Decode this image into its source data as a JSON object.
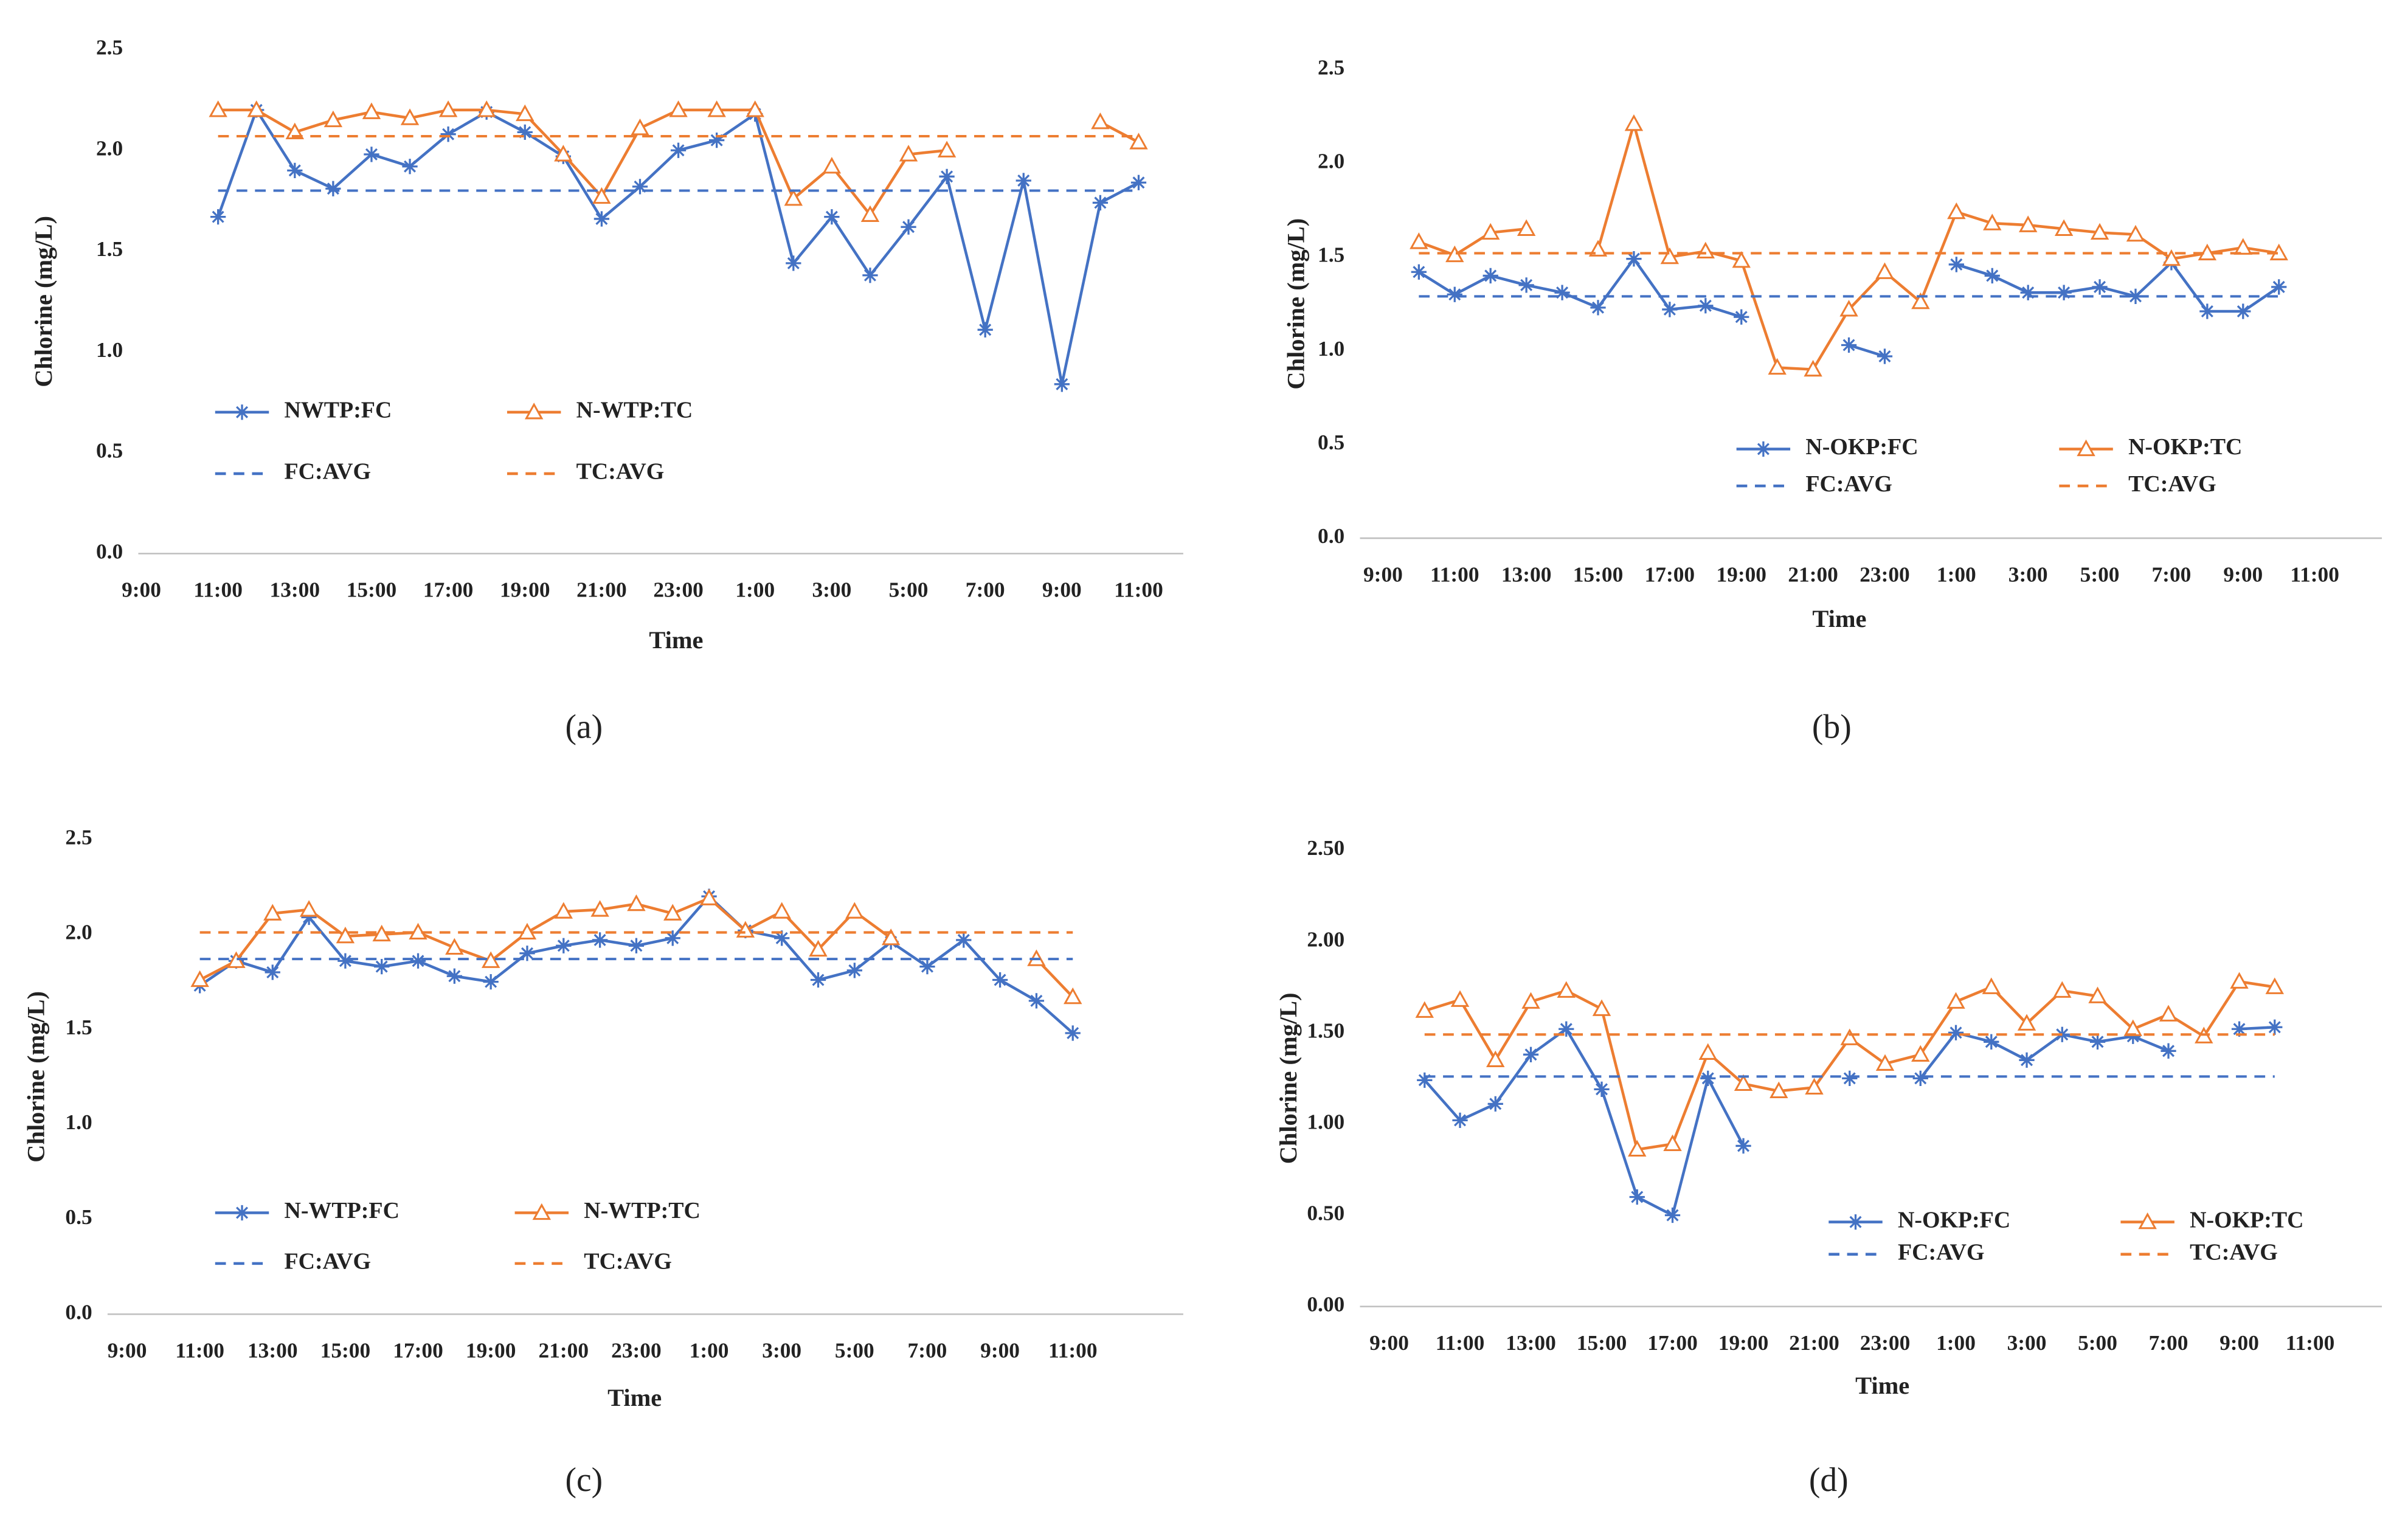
{
  "chart_data": [
    {
      "type": "line",
      "panel_label": "(a)",
      "x_label": "Time",
      "y_label": "Chlorine (mg/L)",
      "categories": [
        "9:00",
        null,
        "11:00",
        null,
        "13:00",
        null,
        "15:00",
        null,
        "17:00",
        null,
        "19:00",
        null,
        "21:00",
        null,
        "23:00",
        null,
        "1:00",
        null,
        "3:00",
        null,
        "5:00",
        null,
        "7:00",
        null,
        "9:00",
        null,
        "11:00"
      ],
      "ylim": [
        0,
        2.5
      ],
      "yticks": [
        {
          "value": 0,
          "label": "0.0"
        },
        0.5,
        {
          "value": 1,
          "label": "1.0"
        },
        1.5,
        {
          "value": 2,
          "label": "2.0"
        },
        2.5
      ],
      "series": [
        {
          "name": "NWTP:FC",
          "color": "#4472c4",
          "marker": "star",
          "dash": false,
          "values": [
            null,
            null,
            1.67,
            2.2,
            1.9,
            1.81,
            1.98,
            1.92,
            2.08,
            2.19,
            2.09,
            1.97,
            1.66,
            1.82,
            2.0,
            2.05,
            2.18,
            1.44,
            1.67,
            1.38,
            1.62,
            1.87,
            1.11,
            1.85,
            0.84,
            1.74,
            1.84
          ]
        },
        {
          "name": "N-WTP:TC",
          "color": "#ed7d31",
          "marker": "triangle",
          "dash": false,
          "values": [
            null,
            null,
            2.2,
            2.2,
            2.09,
            2.15,
            2.19,
            2.16,
            2.2,
            2.2,
            2.18,
            1.98,
            1.77,
            2.11,
            2.2,
            2.2,
            2.2,
            1.76,
            1.92,
            1.68,
            1.98,
            2.0,
            null,
            null,
            null,
            2.14,
            2.04
          ]
        },
        {
          "name": "FC:AVG",
          "color": "#4472c4",
          "marker": null,
          "dash": true,
          "values": [
            null,
            null,
            1.8,
            1.8,
            1.8,
            1.8,
            1.8,
            1.8,
            1.8,
            1.8,
            1.8,
            1.8,
            1.8,
            1.8,
            1.8,
            1.8,
            1.8,
            1.8,
            1.8,
            1.8,
            1.8,
            1.8,
            1.8,
            1.8,
            1.8,
            1.8,
            1.8
          ]
        },
        {
          "name": "TC:AVG",
          "color": "#ed7d31",
          "marker": null,
          "dash": true,
          "values": [
            null,
            null,
            2.07,
            2.07,
            2.07,
            2.07,
            2.07,
            2.07,
            2.07,
            2.07,
            2.07,
            2.07,
            2.07,
            2.07,
            2.07,
            2.07,
            2.07,
            2.07,
            2.07,
            2.07,
            2.07,
            2.07,
            2.07,
            2.07,
            2.07,
            2.07,
            2.07
          ]
        }
      ]
    },
    {
      "type": "line",
      "panel_label": "(b)",
      "x_label": "Time",
      "y_label": "Chlorine (mg/L)",
      "categories": [
        "9:00",
        null,
        "11:00",
        null,
        "13:00",
        null,
        "15:00",
        null,
        "17:00",
        null,
        "19:00",
        null,
        "21:00",
        null,
        "23:00",
        null,
        "1:00",
        null,
        "3:00",
        null,
        "5:00",
        null,
        "7:00",
        null,
        "9:00",
        null,
        "11:00"
      ],
      "ylim": [
        0,
        2.5
      ],
      "yticks": [
        {
          "value": 0,
          "label": "0.0"
        },
        0.5,
        {
          "value": 1,
          "label": "1.0"
        },
        1.5,
        {
          "value": 2,
          "label": "2.0"
        },
        2.5
      ],
      "series": [
        {
          "name": "N-OKP:FC",
          "color": "#4472c4",
          "marker": "star",
          "dash": false,
          "values": [
            null,
            1.42,
            1.3,
            1.4,
            1.35,
            1.31,
            1.23,
            1.49,
            1.22,
            1.24,
            1.18,
            null,
            null,
            1.03,
            0.97,
            null,
            1.46,
            1.4,
            1.31,
            1.31,
            1.34,
            1.29,
            1.47,
            1.21,
            1.21,
            1.34,
            null
          ]
        },
        {
          "name": "N-OKP:TC",
          "color": "#ed7d31",
          "marker": "triangle",
          "dash": false,
          "values": [
            null,
            1.58,
            1.51,
            1.63,
            1.65,
            null,
            1.54,
            2.21,
            1.5,
            1.53,
            1.48,
            0.91,
            0.9,
            1.22,
            1.42,
            1.26,
            1.74,
            1.68,
            1.67,
            1.65,
            1.63,
            1.62,
            1.49,
            1.52,
            1.55,
            1.52,
            null
          ]
        },
        {
          "name": "FC:AVG",
          "color": "#4472c4",
          "marker": null,
          "dash": true,
          "values": [
            null,
            1.29,
            1.29,
            1.29,
            1.29,
            1.29,
            1.29,
            1.29,
            1.29,
            1.29,
            1.29,
            1.29,
            1.29,
            1.29,
            1.29,
            1.29,
            1.29,
            1.29,
            1.29,
            1.29,
            1.29,
            1.29,
            1.29,
            1.29,
            1.29,
            1.29,
            null
          ]
        },
        {
          "name": "TC:AVG",
          "color": "#ed7d31",
          "marker": null,
          "dash": true,
          "values": [
            null,
            1.52,
            1.52,
            1.52,
            1.52,
            1.52,
            1.52,
            1.52,
            1.52,
            1.52,
            1.52,
            1.52,
            1.52,
            1.52,
            1.52,
            1.52,
            1.52,
            1.52,
            1.52,
            1.52,
            1.52,
            1.52,
            1.52,
            1.52,
            1.52,
            1.52,
            null
          ]
        }
      ]
    },
    {
      "type": "line",
      "panel_label": "(c)",
      "x_label": "Time",
      "y_label": "Chlorine (mg/L)",
      "categories": [
        "9:00",
        null,
        "11:00",
        null,
        "13:00",
        null,
        "15:00",
        null,
        "17:00",
        null,
        "19:00",
        null,
        "21:00",
        null,
        "23:00",
        null,
        "1:00",
        null,
        "3:00",
        null,
        "5:00",
        null,
        "7:00",
        null,
        "9:00",
        null,
        "11:00"
      ],
      "ylim": [
        0,
        2.5
      ],
      "yticks": [
        {
          "value": 0,
          "label": "0.0"
        },
        0.5,
        {
          "value": 1,
          "label": "1.0"
        },
        1.5,
        {
          "value": 2,
          "label": "2.0"
        },
        2.5
      ],
      "series": [
        {
          "name": "N-WTP:FC",
          "color": "#4472c4",
          "marker": "star",
          "dash": false,
          "values": [
            null,
            null,
            1.73,
            1.86,
            1.8,
            2.09,
            1.86,
            1.83,
            1.86,
            1.78,
            1.75,
            1.9,
            1.94,
            1.97,
            1.94,
            1.98,
            2.2,
            2.02,
            1.98,
            1.76,
            1.81,
            1.96,
            1.83,
            1.97,
            1.76,
            1.65,
            1.48
          ]
        },
        {
          "name": "N-WTP:TC",
          "color": "#ed7d31",
          "marker": "triangle",
          "dash": false,
          "values": [
            null,
            null,
            1.76,
            1.86,
            2.11,
            2.13,
            1.99,
            2.0,
            2.01,
            1.93,
            1.86,
            2.01,
            2.12,
            2.13,
            2.16,
            2.11,
            2.19,
            2.02,
            2.12,
            1.92,
            2.12,
            1.98,
            null,
            null,
            null,
            1.87,
            1.67
          ]
        },
        {
          "name": "FC:AVG",
          "color": "#4472c4",
          "marker": null,
          "dash": true,
          "values": [
            null,
            null,
            1.87,
            1.87,
            1.87,
            1.87,
            1.87,
            1.87,
            1.87,
            1.87,
            1.87,
            1.87,
            1.87,
            1.87,
            1.87,
            1.87,
            1.87,
            1.87,
            1.87,
            1.87,
            1.87,
            1.87,
            1.87,
            1.87,
            1.87,
            1.87,
            1.87
          ]
        },
        {
          "name": "TC:AVG",
          "color": "#ed7d31",
          "marker": null,
          "dash": true,
          "values": [
            null,
            null,
            2.01,
            2.01,
            2.01,
            2.01,
            2.01,
            2.01,
            2.01,
            2.01,
            2.01,
            2.01,
            2.01,
            2.01,
            2.01,
            2.01,
            2.01,
            2.01,
            2.01,
            2.01,
            2.01,
            2.01,
            2.01,
            2.01,
            2.01,
            2.01,
            2.01
          ]
        }
      ]
    },
    {
      "type": "line",
      "panel_label": "(d)",
      "x_label": "Time",
      "y_label": "Chlorine (mg/L)",
      "categories": [
        "9:00",
        null,
        "11:00",
        null,
        "13:00",
        null,
        "15:00",
        null,
        "17:00",
        null,
        "19:00",
        null,
        "21:00",
        null,
        "23:00",
        null,
        "1:00",
        null,
        "3:00",
        null,
        "5:00",
        null,
        "7:00",
        null,
        "9:00",
        null,
        "11:00"
      ],
      "ylim": [
        0,
        2.5
      ],
      "yticks": [
        {
          "value": 0,
          "label": "0.00"
        },
        {
          "value": 0.5,
          "label": "0.50"
        },
        {
          "value": 1,
          "label": "1.00"
        },
        {
          "value": 1.5,
          "label": "1.50"
        },
        {
          "value": 2,
          "label": "2.00"
        },
        {
          "value": 2.5,
          "label": "2.50"
        }
      ],
      "series": [
        {
          "name": "N-OKP:FC",
          "color": "#4472c4",
          "marker": "star",
          "dash": false,
          "values": [
            null,
            1.24,
            1.02,
            1.11,
            1.38,
            1.52,
            1.19,
            0.6,
            0.5,
            1.25,
            0.88,
            null,
            null,
            1.25,
            null,
            1.25,
            1.5,
            1.45,
            1.35,
            1.49,
            1.45,
            1.48,
            1.4,
            null,
            1.52,
            1.53,
            null
          ]
        },
        {
          "name": "N-OKP:TC",
          "color": "#ed7d31",
          "marker": "triangle",
          "dash": false,
          "values": [
            null,
            1.62,
            1.68,
            1.35,
            1.67,
            1.73,
            1.63,
            0.86,
            0.89,
            1.39,
            1.22,
            1.18,
            1.2,
            1.47,
            1.33,
            1.38,
            1.67,
            1.75,
            1.55,
            1.73,
            1.7,
            1.52,
            1.6,
            1.48,
            1.78,
            1.75,
            null
          ]
        },
        {
          "name": "FC:AVG",
          "color": "#4472c4",
          "marker": null,
          "dash": true,
          "values": [
            null,
            1.26,
            1.26,
            1.26,
            1.26,
            1.26,
            1.26,
            1.26,
            1.26,
            1.26,
            1.26,
            1.26,
            1.26,
            1.26,
            1.26,
            1.26,
            1.26,
            1.26,
            1.26,
            1.26,
            1.26,
            1.26,
            1.26,
            1.26,
            1.26,
            1.26,
            null
          ]
        },
        {
          "name": "TC:AVG",
          "color": "#ed7d31",
          "marker": null,
          "dash": true,
          "values": [
            null,
            1.49,
            1.49,
            1.49,
            1.49,
            1.49,
            1.49,
            1.49,
            1.49,
            1.49,
            1.49,
            1.49,
            1.49,
            1.49,
            1.49,
            1.49,
            1.49,
            1.49,
            1.49,
            1.49,
            1.49,
            1.49,
            1.49,
            1.49,
            1.49,
            1.49,
            null
          ]
        }
      ]
    }
  ]
}
